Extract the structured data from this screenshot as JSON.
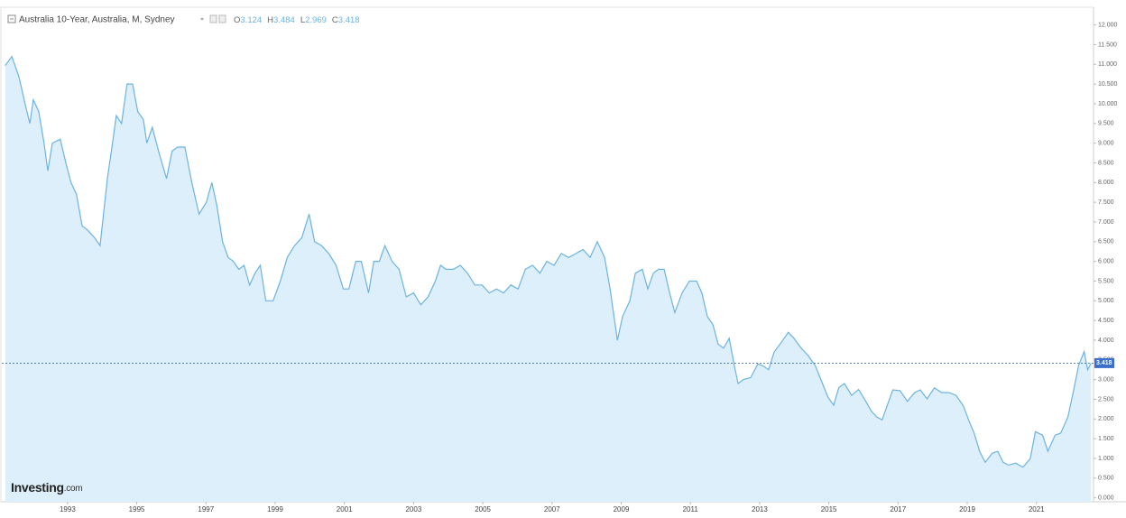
{
  "chart_data": {
    "type": "area",
    "title": "Australia 10-Year, Australia, M, Sydney",
    "ohlc": [
      {
        "label": "O",
        "value": 3.124
      },
      {
        "label": "H",
        "value": 3.484
      },
      {
        "label": "L",
        "value": 2.969
      },
      {
        "label": "C",
        "value": 3.418
      }
    ],
    "brand": "Investing",
    "brand_suffix": ".com",
    "color": "#6db3e0",
    "fill": "#dcEFFA",
    "grid": false,
    "x": [
      1991.2,
      1991.39,
      1991.59,
      1991.8,
      1991.91,
      1992.01,
      1992.17,
      1992.32,
      1992.43,
      1992.56,
      1992.79,
      1992.95,
      1993.1,
      1993.26,
      1993.42,
      1993.57,
      1993.78,
      1993.94,
      1994.15,
      1994.3,
      1994.41,
      1994.56,
      1994.72,
      1994.88,
      1995.03,
      1995.19,
      1995.29,
      1995.45,
      1995.66,
      1995.86,
      1996.02,
      1996.18,
      1996.39,
      1996.59,
      1996.8,
      1997.01,
      1997.17,
      1997.32,
      1997.48,
      1997.64,
      1997.79,
      1997.95,
      1998.1,
      1998.26,
      1998.42,
      1998.57,
      1998.73,
      1998.94,
      1999.15,
      1999.35,
      1999.56,
      1999.77,
      1999.98,
      2000.14,
      2000.34,
      2000.55,
      2000.76,
      2000.97,
      2001.13,
      2001.33,
      2001.49,
      2001.7,
      2001.85,
      2002.01,
      2002.17,
      2002.38,
      2002.58,
      2002.79,
      2003.0,
      2003.21,
      2003.42,
      2003.63,
      2003.78,
      2003.94,
      2004.15,
      2004.35,
      2004.56,
      2004.77,
      2004.98,
      2005.19,
      2005.4,
      2005.6,
      2005.81,
      2006.02,
      2006.23,
      2006.44,
      2006.65,
      2006.85,
      2007.06,
      2007.27,
      2007.48,
      2007.69,
      2007.9,
      2008.1,
      2008.31,
      2008.52,
      2008.68,
      2008.89,
      2009.04,
      2009.25,
      2009.41,
      2009.61,
      2009.77,
      2009.93,
      2010.08,
      2010.24,
      2010.4,
      2010.55,
      2010.76,
      2010.97,
      2011.18,
      2011.33,
      2011.49,
      2011.65,
      2011.8,
      2011.96,
      2012.12,
      2012.27,
      2012.38,
      2012.53,
      2012.74,
      2012.95,
      2013.1,
      2013.26,
      2013.42,
      2013.63,
      2013.83,
      2013.99,
      2014.2,
      2014.41,
      2014.61,
      2014.77,
      2014.98,
      2015.14,
      2015.29,
      2015.45,
      2015.66,
      2015.86,
      2016.07,
      2016.23,
      2016.39,
      2016.54,
      2016.7,
      2016.85,
      2017.06,
      2017.27,
      2017.48,
      2017.64,
      2017.84,
      2018.05,
      2018.26,
      2018.47,
      2018.68,
      2018.89,
      2019.04,
      2019.2,
      2019.36,
      2019.52,
      2019.72,
      2019.88,
      2020.04,
      2020.2,
      2020.4,
      2020.61,
      2020.82,
      2020.97,
      2021.18,
      2021.33,
      2021.54,
      2021.7,
      2021.91,
      2022.06,
      2022.22,
      2022.38,
      2022.48,
      2022.58
    ],
    "values": [
      10.97,
      11.2,
      10.7,
      9.9,
      9.5,
      10.1,
      9.8,
      9.0,
      8.3,
      9.0,
      9.1,
      8.5,
      8.0,
      7.7,
      6.9,
      6.8,
      6.6,
      6.4,
      8.1,
      9.0,
      9.7,
      9.5,
      10.5,
      10.5,
      9.8,
      9.6,
      9.0,
      9.4,
      8.7,
      8.1,
      8.8,
      8.9,
      8.9,
      8.0,
      7.2,
      7.5,
      8.0,
      7.4,
      6.5,
      6.1,
      6.0,
      5.8,
      5.9,
      5.4,
      5.7,
      5.9,
      5.0,
      5.0,
      5.5,
      6.1,
      6.4,
      6.6,
      7.2,
      6.5,
      6.4,
      6.2,
      5.9,
      5.3,
      5.3,
      6.0,
      6.0,
      5.2,
      6.0,
      6.0,
      6.4,
      6.0,
      5.8,
      5.1,
      5.2,
      4.9,
      5.1,
      5.5,
      5.9,
      5.8,
      5.8,
      5.9,
      5.7,
      5.4,
      5.4,
      5.2,
      5.3,
      5.2,
      5.4,
      5.3,
      5.8,
      5.9,
      5.7,
      6.0,
      5.9,
      6.2,
      6.1,
      6.2,
      6.3,
      6.1,
      6.5,
      6.1,
      5.3,
      4.0,
      4.6,
      5.0,
      5.7,
      5.8,
      5.3,
      5.7,
      5.8,
      5.8,
      5.2,
      4.7,
      5.2,
      5.5,
      5.5,
      5.2,
      4.6,
      4.4,
      3.9,
      3.8,
      4.05,
      3.35,
      2.9,
      3.0,
      3.05,
      3.4,
      3.35,
      3.25,
      3.7,
      3.95,
      4.2,
      4.05,
      3.8,
      3.6,
      3.35,
      3.0,
      2.55,
      2.35,
      2.8,
      2.9,
      2.6,
      2.75,
      2.45,
      2.2,
      2.05,
      1.98,
      2.37,
      2.74,
      2.72,
      2.45,
      2.67,
      2.74,
      2.51,
      2.79,
      2.67,
      2.67,
      2.6,
      2.33,
      1.98,
      1.64,
      1.18,
      0.9,
      1.13,
      1.18,
      0.9,
      0.83,
      0.88,
      0.78,
      0.99,
      1.68,
      1.59,
      1.18,
      1.59,
      1.64,
      2.05,
      2.67,
      3.36,
      3.71,
      3.25,
      3.418
    ],
    "xlim": [
      1991.1,
      2022.65
    ],
    "xticks": [
      1993,
      1995,
      1997,
      1999,
      2001,
      2003,
      2005,
      2007,
      2009,
      2011,
      2013,
      2015,
      2017,
      2019,
      2021
    ],
    "ylim": [
      -0.1,
      12.45
    ],
    "yticks": [
      {
        "value": 0,
        "label": "0.000"
      },
      {
        "value": 0.5,
        "label": "0.500"
      },
      {
        "value": 1,
        "label": "1.000"
      },
      {
        "value": 1.5,
        "label": "1.500"
      },
      {
        "value": 2,
        "label": "2.000"
      },
      {
        "value": 2.5,
        "label": "2.500"
      },
      {
        "value": 3,
        "label": "3.000"
      },
      {
        "value": 3.5,
        "label": "3.500"
      },
      {
        "value": 4,
        "label": "4.000"
      },
      {
        "value": 4.5,
        "label": "4.500"
      },
      {
        "value": 5,
        "label": "5.000"
      },
      {
        "value": 5.5,
        "label": "5.500"
      },
      {
        "value": 6,
        "label": "6.000"
      },
      {
        "value": 6.5,
        "label": "6.500"
      },
      {
        "value": 7,
        "label": "7.000"
      },
      {
        "value": 7.5,
        "label": "7.500"
      },
      {
        "value": 8,
        "label": "8.000"
      },
      {
        "value": 8.5,
        "label": "8.500"
      },
      {
        "value": 9,
        "label": "9.000"
      },
      {
        "value": 9.5,
        "label": "9.500"
      },
      {
        "value": 10,
        "label": "10.000"
      },
      {
        "value": 10.5,
        "label": "10.500"
      },
      {
        "value": 11,
        "label": "11.000"
      },
      {
        "value": 11.5,
        "label": "11.500"
      },
      {
        "value": 12,
        "label": "12.000"
      }
    ]
  }
}
